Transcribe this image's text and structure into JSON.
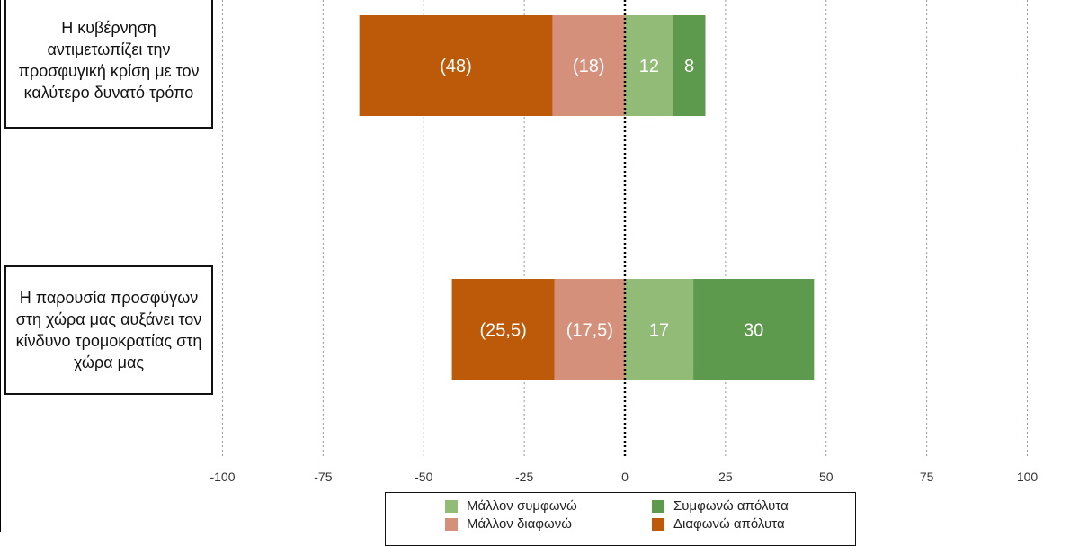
{
  "chart_data": {
    "type": "bar",
    "orientation": "horizontal",
    "stacked": "diverging",
    "categories": [
      "Η κυβέρνηση αντιμετωπίζει την προσφυγική κρίση με τον καλύτερο δυνατό τρόπο",
      "Η παρουσία προσφύγων στη χώρα μας αυξάνει τον κίνδυνο τρομοκρατίας στη χώρα μας"
    ],
    "series": [
      {
        "name": "Μάλλον διαφωνώ",
        "values": [
          -18,
          -17.5
        ],
        "labels": [
          "(18)",
          "(17,5)"
        ],
        "color": "#d4907b"
      },
      {
        "name": "Διαφωνώ απόλυτα",
        "values": [
          -48,
          -25.5
        ],
        "labels": [
          "(48)",
          "(25,5)"
        ],
        "color": "#bd5a0a"
      },
      {
        "name": "Μάλλον συμφωνώ",
        "values": [
          12,
          17
        ],
        "labels": [
          "12",
          "17"
        ],
        "color": "#93bb78"
      },
      {
        "name": "Συμφωνώ απόλυτα",
        "values": [
          8,
          30
        ],
        "labels": [
          "8",
          "30"
        ],
        "color": "#5e9a4d"
      }
    ],
    "xlim": [
      -100,
      100
    ],
    "xticks": [
      -100,
      -75,
      -50,
      -25,
      0,
      25,
      50,
      75,
      100
    ],
    "xtick_labels": [
      "-100",
      "-75",
      "-50",
      "-25",
      "0",
      "25",
      "50",
      "75",
      "100"
    ],
    "grid": "vertical dotted",
    "zero_line": "dotted",
    "legend": {
      "position": "bottom",
      "items": [
        "Μάλλον συμφωνώ",
        "Συμφωνώ απόλυτα",
        "Μάλλον διαφωνώ",
        "Διαφωνώ απόλυτα"
      ]
    },
    "title": "",
    "xlabel": "",
    "ylabel": ""
  }
}
